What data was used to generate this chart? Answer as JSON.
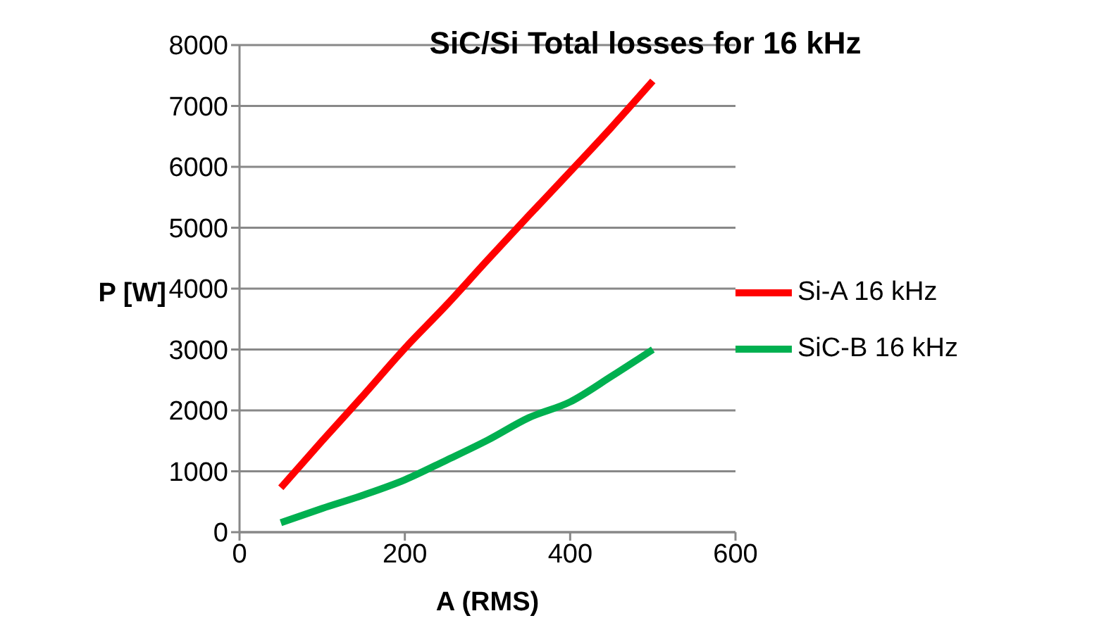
{
  "chart_data": {
    "type": "line",
    "title": "SiC/Si Total losses for 16 kHz",
    "xlabel": "A (RMS)",
    "ylabel": "P [W]",
    "x": [
      50,
      100,
      150,
      200,
      250,
      300,
      350,
      400,
      450,
      500
    ],
    "series": [
      {
        "name": "SiC-B 16 kHz",
        "color": "#00b050",
        "values": [
          157,
          390,
          610,
          860,
          1180,
          1510,
          1880,
          2140,
          2560,
          3000
        ]
      },
      {
        "name": "Si-A 16 kHz",
        "color": "#ff0000",
        "values": [
          730,
          1500,
          2250,
          3020,
          3725,
          4470,
          5200,
          5920,
          6650,
          7410
        ]
      }
    ],
    "xlim": [
      0,
      600
    ],
    "xticks": [
      0,
      200,
      400,
      600
    ],
    "ylim": [
      0,
      8000
    ],
    "yticks": [
      0,
      1000,
      2000,
      3000,
      4000,
      5000,
      6000,
      7000,
      8000
    ],
    "grid": "y",
    "legend": "right",
    "marker": "none",
    "line_style": "solid"
  }
}
